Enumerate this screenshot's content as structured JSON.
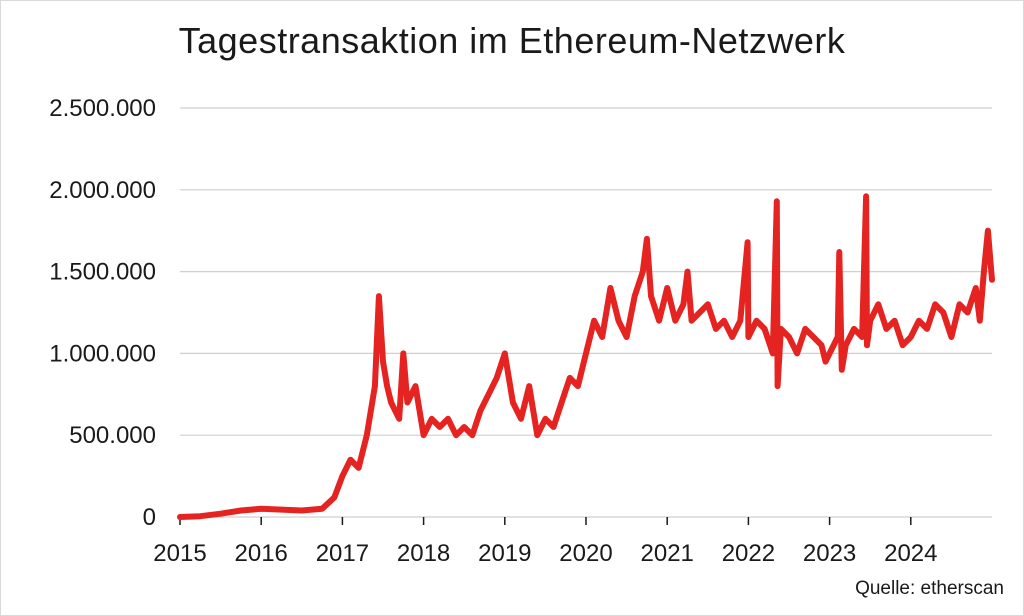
{
  "chart_data": {
    "type": "line",
    "title": "Tagestransaktion im Ethereum-Netzwerk",
    "source": "Quelle: etherscan",
    "xlabel": "",
    "ylabel": "",
    "x_range": [
      2015.0,
      2025.0
    ],
    "ylim": [
      0,
      2500000
    ],
    "y_ticks": [
      0,
      500000,
      1000000,
      1500000,
      2000000,
      2500000
    ],
    "y_tick_labels": [
      "0",
      "500.000",
      "1.000.000",
      "1.500.000",
      "2.000.000",
      "2.500.000"
    ],
    "x_ticks": [
      2015,
      2016,
      2017,
      2018,
      2019,
      2020,
      2021,
      2022,
      2023,
      2024
    ],
    "x_tick_labels": [
      "2015",
      "2016",
      "2017",
      "2018",
      "2019",
      "2020",
      "2021",
      "2022",
      "2023",
      "2024"
    ],
    "grid": "horizontal",
    "line_color": "#e52421",
    "series": [
      {
        "x": [
          2015.0,
          2015.25,
          2015.5,
          2015.75,
          2016.0,
          2016.25,
          2016.5,
          2016.75,
          2016.9,
          2017.0,
          2017.1,
          2017.2,
          2017.3,
          2017.4,
          2017.45,
          2017.5,
          2017.55,
          2017.6,
          2017.7,
          2017.75,
          2017.8,
          2017.9,
          2018.0,
          2018.1,
          2018.2,
          2018.3,
          2018.4,
          2018.5,
          2018.6,
          2018.7,
          2018.8,
          2018.9,
          2019.0,
          2019.1,
          2019.2,
          2019.3,
          2019.4,
          2019.5,
          2019.6,
          2019.7,
          2019.8,
          2019.9,
          2020.0,
          2020.1,
          2020.2,
          2020.3,
          2020.4,
          2020.5,
          2020.6,
          2020.7,
          2020.75,
          2020.8,
          2020.9,
          2021.0,
          2021.1,
          2021.2,
          2021.25,
          2021.3,
          2021.4,
          2021.5,
          2021.6,
          2021.7,
          2021.8,
          2021.9,
          2021.99,
          2022.0,
          2022.1,
          2022.2,
          2022.3,
          2022.35,
          2022.36,
          2022.4,
          2022.5,
          2022.6,
          2022.7,
          2022.8,
          2022.9,
          2022.95,
          2023.0,
          2023.1,
          2023.12,
          2023.15,
          2023.2,
          2023.3,
          2023.4,
          2023.45,
          2023.46,
          2023.5,
          2023.6,
          2023.7,
          2023.8,
          2023.9,
          2024.0,
          2024.1,
          2024.2,
          2024.3,
          2024.4,
          2024.5,
          2024.6,
          2024.7,
          2024.8,
          2024.85,
          2024.9,
          2024.95,
          2025.0
        ],
        "values": [
          0,
          5000,
          20000,
          40000,
          50000,
          45000,
          40000,
          50000,
          120000,
          250000,
          350000,
          300000,
          500000,
          800000,
          1350000,
          950000,
          800000,
          700000,
          600000,
          1000000,
          700000,
          800000,
          500000,
          600000,
          550000,
          600000,
          500000,
          550000,
          500000,
          650000,
          750000,
          850000,
          1000000,
          700000,
          600000,
          800000,
          500000,
          600000,
          550000,
          700000,
          850000,
          800000,
          1000000,
          1200000,
          1100000,
          1400000,
          1200000,
          1100000,
          1350000,
          1500000,
          1700000,
          1350000,
          1200000,
          1400000,
          1200000,
          1300000,
          1500000,
          1200000,
          1250000,
          1300000,
          1150000,
          1200000,
          1100000,
          1200000,
          1680000,
          1100000,
          1200000,
          1150000,
          1000000,
          1930000,
          800000,
          1150000,
          1100000,
          1000000,
          1150000,
          1100000,
          1050000,
          950000,
          1000000,
          1100000,
          1620000,
          900000,
          1050000,
          1150000,
          1100000,
          1960000,
          1050000,
          1200000,
          1300000,
          1150000,
          1200000,
          1050000,
          1100000,
          1200000,
          1150000,
          1300000,
          1250000,
          1100000,
          1300000,
          1250000,
          1400000,
          1200000,
          1500000,
          1750000,
          1450000
        ]
      }
    ]
  }
}
